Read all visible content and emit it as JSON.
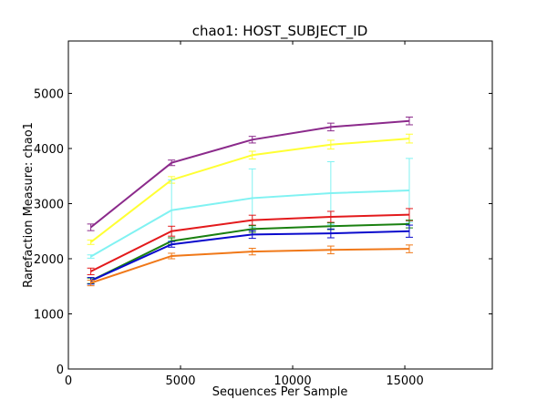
{
  "chart_data": {
    "type": "line",
    "title": "chao1: HOST_SUBJECT_ID",
    "xlabel": "Sequences Per Sample",
    "ylabel": "Rarefaction Measure: chao1",
    "xlim": [
      0,
      18900
    ],
    "ylim": [
      0,
      5950
    ],
    "xticks": [
      0,
      5000,
      10000,
      15000
    ],
    "yticks": [
      0,
      1000,
      2000,
      3000,
      4000,
      5000
    ],
    "grid": false,
    "x": [
      1000,
      4600,
      8200,
      11700,
      15200
    ],
    "series": [
      {
        "color": "#8B2A8B",
        "values": [
          2570,
          3740,
          4160,
          4390,
          4500
        ],
        "errors": [
          60,
          50,
          60,
          70,
          70
        ]
      },
      {
        "color": "#FFFF33",
        "values": [
          2300,
          3430,
          3880,
          4070,
          4180
        ],
        "errors": [
          40,
          60,
          70,
          80,
          80
        ]
      },
      {
        "color": "#80F2F2",
        "values": [
          2040,
          2880,
          3100,
          3190,
          3240
        ],
        "errors": [
          30,
          550,
          530,
          570,
          580
        ]
      },
      {
        "color": "#E31A1C",
        "values": [
          1770,
          2500,
          2700,
          2760,
          2800
        ],
        "errors": [
          60,
          90,
          90,
          100,
          110
        ]
      },
      {
        "color": "#1A8010",
        "values": [
          1600,
          2320,
          2540,
          2590,
          2630
        ],
        "errors": [
          50,
          60,
          60,
          60,
          70
        ]
      },
      {
        "color": "#0A0ACC",
        "values": [
          1600,
          2260,
          2440,
          2460,
          2500
        ],
        "errors": [
          60,
          50,
          70,
          80,
          110
        ]
      },
      {
        "color": "#F07818",
        "values": [
          1560,
          2050,
          2130,
          2160,
          2180
        ],
        "errors": [
          50,
          50,
          60,
          70,
          70
        ]
      }
    ]
  }
}
